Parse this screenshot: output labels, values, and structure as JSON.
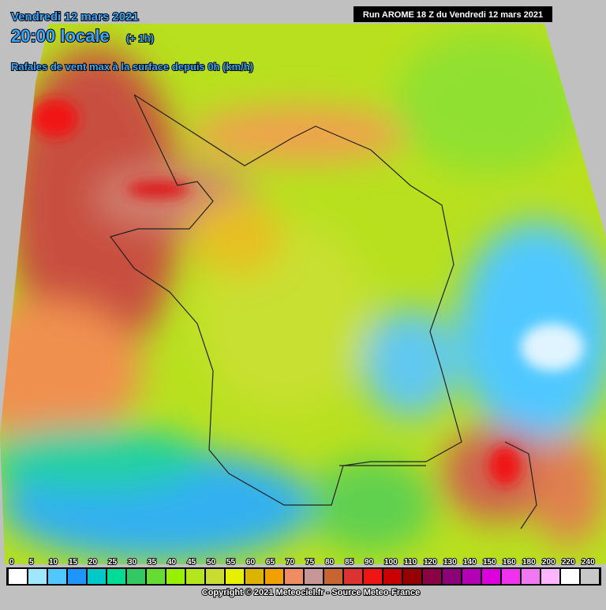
{
  "header": {
    "date": "Vendredi 12 mars 2021",
    "time": "20:00 locale",
    "lead": "(+ 1h)",
    "subtitle": "Rafales de vent max à la surface depuis 0h (km/h)"
  },
  "run": "Run AROME 18 Z du Vendredi 12 mars 2021",
  "legend": {
    "labels": [
      0,
      5,
      10,
      15,
      20,
      25,
      30,
      35,
      40,
      45,
      50,
      55,
      60,
      65,
      70,
      75,
      80,
      85,
      90,
      100,
      110,
      120,
      130,
      140,
      150,
      160,
      180,
      200,
      220,
      240
    ],
    "colors": [
      "#ffffff",
      "#a0e6ff",
      "#50c8ff",
      "#1e96ff",
      "#00c8c8",
      "#00dc96",
      "#32c864",
      "#64dc32",
      "#96f000",
      "#b4e61e",
      "#c8dc32",
      "#e6f000",
      "#dcb400",
      "#f0a000",
      "#f08c64",
      "#c89696",
      "#c86432",
      "#dc3232",
      "#f01414",
      "#c80000",
      "#960000",
      "#8c0046",
      "#8c0078",
      "#b400b4",
      "#dc00dc",
      "#f032f0",
      "#f078f0",
      "#ffb4ff",
      "#ffffff",
      "#c8c8c8"
    ]
  },
  "copyright": "Copyright © 2021 Meteociel.fr - Source Meteo-France"
}
